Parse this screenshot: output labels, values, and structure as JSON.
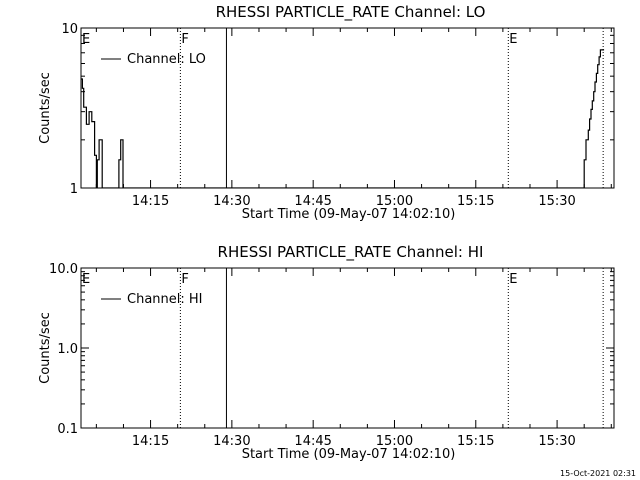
{
  "footer": {
    "timestamp": "15-Oct-2021 02:31"
  },
  "chart_data": [
    {
      "type": "line",
      "title": "RHESSI PARTICLE_RATE Channel: LO",
      "xlabel": "Start Time (09-May-07 14:02:10)",
      "ylabel": "Counts/sec",
      "yscale": "log",
      "ylim": [
        1,
        10
      ],
      "xlim": [
        "14:02:10",
        "15:40:30"
      ],
      "x_ticks": [
        "14:15",
        "14:30",
        "14:45",
        "15:00",
        "15:15",
        "15:30"
      ],
      "y_ticks": [
        "1",
        "10"
      ],
      "legend": {
        "position": "top-left",
        "entries": [
          "Channel: LO"
        ]
      },
      "markers": [
        {
          "label": "E",
          "time": "14:02:10",
          "style": "solid"
        },
        {
          "label": "F",
          "time": "14:20:30",
          "style": "dotted"
        },
        {
          "label": "",
          "time": "14:29:00",
          "style": "solid"
        },
        {
          "label": "E",
          "time": "15:21:00",
          "style": "dotted"
        },
        {
          "label": "",
          "time": "15:38:30",
          "style": "dotted"
        }
      ],
      "series": [
        {
          "name": "Channel: LO",
          "points": [
            [
              "14:02:10",
              4.8
            ],
            [
              "14:02:25",
              4.8
            ],
            [
              "14:02:25",
              4.2
            ],
            [
              "14:02:40",
              4.2
            ],
            [
              "14:02:40",
              3.2
            ],
            [
              "14:03:10",
              3.2
            ],
            [
              "14:03:10",
              2.5
            ],
            [
              "14:03:40",
              2.5
            ],
            [
              "14:03:40",
              3.0
            ],
            [
              "14:04:10",
              3.0
            ],
            [
              "14:04:10",
              2.6
            ],
            [
              "14:04:40",
              2.6
            ],
            [
              "14:04:40",
              1.6
            ],
            [
              "14:05:00",
              1.6
            ],
            [
              "14:05:00",
              1.0
            ],
            [
              "14:05:10",
              1.0
            ],
            [
              "14:05:10",
              1.5
            ],
            [
              "14:05:30",
              1.5
            ],
            [
              "14:05:30",
              2.0
            ],
            [
              "14:06:05",
              2.0
            ],
            [
              "14:06:05",
              1.0
            ],
            [
              "14:09:10",
              1.0
            ],
            [
              "14:09:10",
              1.5
            ],
            [
              "14:09:30",
              1.5
            ],
            [
              "14:09:30",
              2.0
            ],
            [
              "14:09:55",
              2.0
            ],
            [
              "14:09:55",
              1.0
            ],
            [
              "15:35:00",
              1.0
            ],
            [
              "15:35:00",
              1.5
            ],
            [
              "15:35:20",
              1.5
            ],
            [
              "15:35:20",
              2.0
            ],
            [
              "15:35:45",
              2.0
            ],
            [
              "15:35:45",
              2.3
            ],
            [
              "15:36:00",
              2.3
            ],
            [
              "15:36:00",
              2.7
            ],
            [
              "15:36:15",
              2.7
            ],
            [
              "15:36:15",
              3.1
            ],
            [
              "15:36:30",
              3.1
            ],
            [
              "15:36:30",
              3.5
            ],
            [
              "15:36:45",
              3.5
            ],
            [
              "15:36:45",
              4.0
            ],
            [
              "15:37:00",
              4.0
            ],
            [
              "15:37:00",
              4.6
            ],
            [
              "15:37:15",
              4.6
            ],
            [
              "15:37:15",
              5.2
            ],
            [
              "15:37:30",
              5.2
            ],
            [
              "15:37:30",
              5.9
            ],
            [
              "15:37:45",
              5.9
            ],
            [
              "15:37:45",
              6.6
            ],
            [
              "15:38:00",
              6.6
            ],
            [
              "15:38:00",
              7.3
            ],
            [
              "15:38:40",
              7.3
            ]
          ]
        }
      ]
    },
    {
      "type": "line",
      "title": "RHESSI PARTICLE_RATE Channel: HI",
      "xlabel": "Start Time (09-May-07 14:02:10)",
      "ylabel": "Counts/sec",
      "yscale": "log",
      "ylim": [
        0.1,
        10
      ],
      "xlim": [
        "14:02:10",
        "15:40:30"
      ],
      "x_ticks": [
        "14:15",
        "14:30",
        "14:45",
        "15:00",
        "15:15",
        "15:30"
      ],
      "y_ticks": [
        "0.1",
        "1.0",
        "10.0"
      ],
      "legend": {
        "position": "top-left",
        "entries": [
          "Channel: HI"
        ]
      },
      "markers": [
        {
          "label": "E",
          "time": "14:02:10",
          "style": "solid"
        },
        {
          "label": "F",
          "time": "14:20:30",
          "style": "dotted"
        },
        {
          "label": "",
          "time": "14:29:00",
          "style": "solid"
        },
        {
          "label": "E",
          "time": "15:21:00",
          "style": "dotted"
        },
        {
          "label": "",
          "time": "15:38:30",
          "style": "dotted"
        }
      ],
      "series": [
        {
          "name": "Channel: HI",
          "points": []
        }
      ]
    }
  ]
}
